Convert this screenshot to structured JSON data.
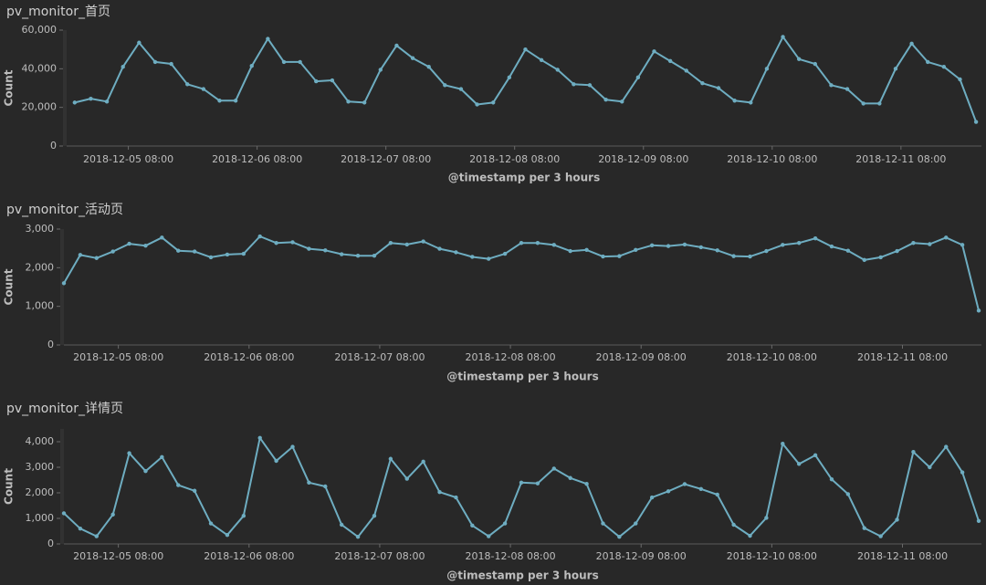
{
  "chart_data": [
    {
      "type": "line",
      "title": "pv_monitor_首页",
      "ylabel": "Count",
      "xlabel": "@timestamp per 3 hours",
      "color": "#6eadc1",
      "x": [
        "2018-12-04 22:00",
        "2018-12-05 01:00",
        "2018-12-05 04:00",
        "2018-12-05 07:00",
        "2018-12-05 10:00",
        "2018-12-05 13:00",
        "2018-12-05 16:00",
        "2018-12-05 19:00",
        "2018-12-05 22:00",
        "2018-12-06 01:00",
        "2018-12-06 04:00",
        "2018-12-06 07:00",
        "2018-12-06 10:00",
        "2018-12-06 13:00",
        "2018-12-06 16:00",
        "2018-12-06 19:00",
        "2018-12-06 22:00",
        "2018-12-07 01:00",
        "2018-12-07 04:00",
        "2018-12-07 07:00",
        "2018-12-07 10:00",
        "2018-12-07 13:00",
        "2018-12-07 16:00",
        "2018-12-07 19:00",
        "2018-12-07 22:00",
        "2018-12-08 01:00",
        "2018-12-08 04:00",
        "2018-12-08 07:00",
        "2018-12-08 10:00",
        "2018-12-08 13:00",
        "2018-12-08 16:00",
        "2018-12-08 19:00",
        "2018-12-08 22:00",
        "2018-12-09 01:00",
        "2018-12-09 04:00",
        "2018-12-09 07:00",
        "2018-12-09 10:00",
        "2018-12-09 13:00",
        "2018-12-09 16:00",
        "2018-12-09 19:00",
        "2018-12-09 22:00",
        "2018-12-10 01:00",
        "2018-12-10 04:00",
        "2018-12-10 07:00",
        "2018-12-10 10:00",
        "2018-12-10 13:00",
        "2018-12-10 16:00",
        "2018-12-10 19:00",
        "2018-12-10 22:00",
        "2018-12-11 01:00",
        "2018-12-11 04:00",
        "2018-12-11 07:00",
        "2018-12-11 10:00",
        "2018-12-11 13:00",
        "2018-12-11 16:00",
        "2018-12-11 19:00",
        "2018-12-11 22:00"
      ],
      "values": [
        22500,
        24500,
        23000,
        41000,
        53500,
        43500,
        42500,
        32000,
        29500,
        23500,
        23500,
        41500,
        55500,
        43500,
        43500,
        33500,
        34000,
        23000,
        22500,
        39500,
        52000,
        45500,
        41000,
        31500,
        29500,
        21500,
        22500,
        35500,
        50000,
        44500,
        39500,
        32000,
        31500,
        24000,
        23000,
        35500,
        49000,
        44000,
        39000,
        32500,
        30000,
        23500,
        22500,
        40000,
        56500,
        45000,
        42500,
        31500,
        29500,
        22000,
        22000,
        40000,
        53000,
        43500,
        41000,
        34500,
        12500
      ],
      "xlim": [
        "2018-12-04 20:30",
        "2018-12-11 23:00"
      ],
      "xticks": [
        "2018-12-05 08:00",
        "2018-12-06 08:00",
        "2018-12-07 08:00",
        "2018-12-08 08:00",
        "2018-12-09 08:00",
        "2018-12-10 08:00",
        "2018-12-11 08:00"
      ],
      "ylim": [
        0,
        60000
      ],
      "yticks": [
        0,
        {
          "value": 20000,
          "label": "20,000"
        },
        {
          "value": 40000,
          "label": "40,000"
        },
        {
          "value": 60000,
          "label": "60,000"
        }
      ]
    },
    {
      "type": "line",
      "title": "pv_monitor_活动页",
      "ylabel": "Count",
      "xlabel": "@timestamp per 3 hours",
      "color": "#6eadc1",
      "x": [
        "2018-12-04 22:00",
        "2018-12-05 01:00",
        "2018-12-05 04:00",
        "2018-12-05 07:00",
        "2018-12-05 10:00",
        "2018-12-05 13:00",
        "2018-12-05 16:00",
        "2018-12-05 19:00",
        "2018-12-05 22:00",
        "2018-12-06 01:00",
        "2018-12-06 04:00",
        "2018-12-06 07:00",
        "2018-12-06 10:00",
        "2018-12-06 13:00",
        "2018-12-06 16:00",
        "2018-12-06 19:00",
        "2018-12-06 22:00",
        "2018-12-07 01:00",
        "2018-12-07 04:00",
        "2018-12-07 07:00",
        "2018-12-07 10:00",
        "2018-12-07 13:00",
        "2018-12-07 16:00",
        "2018-12-07 19:00",
        "2018-12-07 22:00",
        "2018-12-08 01:00",
        "2018-12-08 04:00",
        "2018-12-08 07:00",
        "2018-12-08 10:00",
        "2018-12-08 13:00",
        "2018-12-08 16:00",
        "2018-12-08 19:00",
        "2018-12-08 22:00",
        "2018-12-09 01:00",
        "2018-12-09 04:00",
        "2018-12-09 07:00",
        "2018-12-09 10:00",
        "2018-12-09 13:00",
        "2018-12-09 16:00",
        "2018-12-09 19:00",
        "2018-12-09 22:00",
        "2018-12-10 01:00",
        "2018-12-10 04:00",
        "2018-12-10 07:00",
        "2018-12-10 10:00",
        "2018-12-10 13:00",
        "2018-12-10 16:00",
        "2018-12-10 19:00",
        "2018-12-10 22:00",
        "2018-12-11 01:00",
        "2018-12-11 04:00",
        "2018-12-11 07:00",
        "2018-12-11 10:00",
        "2018-12-11 13:00",
        "2018-12-11 16:00",
        "2018-12-11 19:00",
        "2018-12-11 22:00"
      ],
      "values": [
        1600,
        2330,
        2250,
        2420,
        2620,
        2570,
        2780,
        2440,
        2420,
        2270,
        2340,
        2360,
        2810,
        2640,
        2660,
        2490,
        2450,
        2350,
        2310,
        2310,
        2640,
        2600,
        2680,
        2490,
        2400,
        2280,
        2230,
        2360,
        2640,
        2640,
        2590,
        2430,
        2460,
        2290,
        2300,
        2460,
        2580,
        2560,
        2600,
        2530,
        2450,
        2300,
        2290,
        2430,
        2590,
        2640,
        2760,
        2550,
        2440,
        2200,
        2270,
        2430,
        2640,
        2610,
        2780,
        2590,
        890
      ],
      "xlim": [
        "2018-12-04 22:00",
        "2018-12-11 22:30"
      ],
      "xticks": [
        "2018-12-05 08:00",
        "2018-12-06 08:00",
        "2018-12-07 08:00",
        "2018-12-08 08:00",
        "2018-12-09 08:00",
        "2018-12-10 08:00",
        "2018-12-11 08:00"
      ],
      "ylim": [
        0,
        3000
      ],
      "yticks": [
        0,
        {
          "value": 1000,
          "label": "1,000"
        },
        {
          "value": 2000,
          "label": "2,000"
        },
        {
          "value": 3000,
          "label": "3,000"
        }
      ]
    },
    {
      "type": "line",
      "title": "pv_monitor_详情页",
      "ylabel": "Count",
      "xlabel": "@timestamp per 3 hours",
      "color": "#6eadc1",
      "x": [
        "2018-12-04 22:00",
        "2018-12-05 01:00",
        "2018-12-05 04:00",
        "2018-12-05 07:00",
        "2018-12-05 10:00",
        "2018-12-05 13:00",
        "2018-12-05 16:00",
        "2018-12-05 19:00",
        "2018-12-05 22:00",
        "2018-12-06 01:00",
        "2018-12-06 04:00",
        "2018-12-06 07:00",
        "2018-12-06 10:00",
        "2018-12-06 13:00",
        "2018-12-06 16:00",
        "2018-12-06 19:00",
        "2018-12-06 22:00",
        "2018-12-07 01:00",
        "2018-12-07 04:00",
        "2018-12-07 07:00",
        "2018-12-07 10:00",
        "2018-12-07 13:00",
        "2018-12-07 16:00",
        "2018-12-07 19:00",
        "2018-12-07 22:00",
        "2018-12-08 01:00",
        "2018-12-08 04:00",
        "2018-12-08 07:00",
        "2018-12-08 10:00",
        "2018-12-08 13:00",
        "2018-12-08 16:00",
        "2018-12-08 19:00",
        "2018-12-08 22:00",
        "2018-12-09 01:00",
        "2018-12-09 04:00",
        "2018-12-09 07:00",
        "2018-12-09 10:00",
        "2018-12-09 13:00",
        "2018-12-09 16:00",
        "2018-12-09 19:00",
        "2018-12-09 22:00",
        "2018-12-10 01:00",
        "2018-12-10 04:00",
        "2018-12-10 07:00",
        "2018-12-10 10:00",
        "2018-12-10 13:00",
        "2018-12-10 16:00",
        "2018-12-10 19:00",
        "2018-12-10 22:00",
        "2018-12-11 01:00",
        "2018-12-11 04:00",
        "2018-12-11 07:00",
        "2018-12-11 10:00",
        "2018-12-11 13:00",
        "2018-12-11 16:00",
        "2018-12-11 19:00",
        "2018-12-11 22:00"
      ],
      "values": [
        1200,
        600,
        300,
        1150,
        3550,
        2850,
        3400,
        2300,
        2080,
        800,
        350,
        1100,
        4150,
        3250,
        3800,
        2400,
        2250,
        750,
        280,
        1100,
        3330,
        2550,
        3220,
        2030,
        1820,
        720,
        300,
        800,
        2400,
        2370,
        2950,
        2580,
        2350,
        800,
        280,
        800,
        1820,
        2060,
        2340,
        2150,
        1930,
        750,
        320,
        1020,
        3920,
        3130,
        3470,
        2530,
        1950,
        620,
        300,
        950,
        3600,
        3000,
        3800,
        2800,
        900
      ],
      "xlim": [
        "2018-12-04 22:00",
        "2018-12-11 22:30"
      ],
      "xticks": [
        "2018-12-05 08:00",
        "2018-12-06 08:00",
        "2018-12-07 08:00",
        "2018-12-08 08:00",
        "2018-12-09 08:00",
        "2018-12-10 08:00",
        "2018-12-11 08:00"
      ],
      "ylim": [
        0,
        4500
      ],
      "yticks": [
        0,
        {
          "value": 1000,
          "label": "1,000"
        },
        {
          "value": 2000,
          "label": "2,000"
        },
        {
          "value": 3000,
          "label": "3,000"
        },
        {
          "value": 4000,
          "label": "4,000"
        }
      ]
    }
  ]
}
